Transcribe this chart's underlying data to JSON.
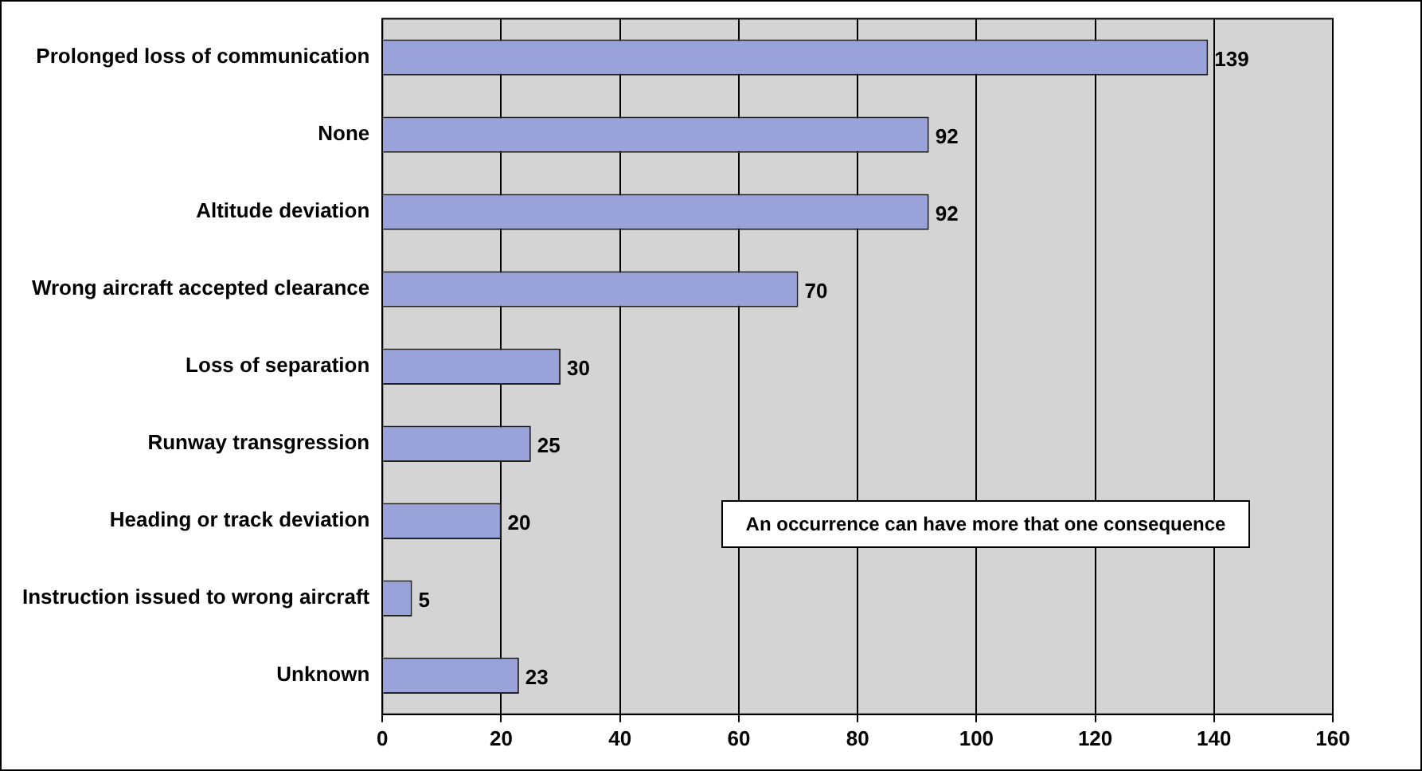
{
  "chart_data": {
    "type": "bar",
    "orientation": "horizontal",
    "categories": [
      "Prolonged loss of communication",
      "None",
      "Altitude deviation",
      "Wrong aircraft accepted clearance",
      "Loss of separation",
      "Runway transgression",
      "Heading or track deviation",
      "Instruction issued to wrong aircraft",
      "Unknown"
    ],
    "values": [
      139,
      92,
      92,
      70,
      30,
      25,
      20,
      5,
      23
    ],
    "color": "#9aa3d9",
    "xlim": [
      0,
      160
    ],
    "xticks": [
      0,
      20,
      40,
      60,
      80,
      100,
      120,
      140,
      160
    ],
    "grid": "x",
    "legend": false,
    "data_labels": true,
    "annotations": [
      "An occurrence can have more that one consequence"
    ]
  }
}
